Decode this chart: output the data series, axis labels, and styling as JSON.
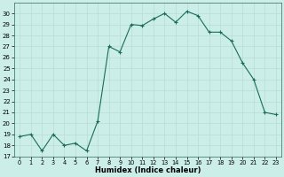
{
  "x": [
    0,
    1,
    2,
    3,
    4,
    5,
    6,
    7,
    8,
    9,
    10,
    11,
    12,
    13,
    14,
    15,
    16,
    17,
    18,
    19,
    20,
    21,
    22,
    23
  ],
  "y": [
    18.8,
    19.0,
    17.5,
    19.0,
    18.0,
    18.2,
    17.5,
    20.2,
    27.0,
    26.5,
    29.0,
    28.9,
    29.5,
    30.0,
    29.2,
    30.2,
    29.8,
    28.3,
    28.3,
    27.5,
    25.5,
    24.0,
    21.0,
    20.8
  ],
  "xlabel": "Humidex (Indice chaleur)",
  "ylim": [
    17,
    31
  ],
  "xlim": [
    -0.5,
    23.5
  ],
  "yticks": [
    17,
    18,
    19,
    20,
    21,
    22,
    23,
    24,
    25,
    26,
    27,
    28,
    29,
    30
  ],
  "xticks": [
    0,
    1,
    2,
    3,
    4,
    5,
    6,
    7,
    8,
    9,
    10,
    11,
    12,
    13,
    14,
    15,
    16,
    17,
    18,
    19,
    20,
    21,
    22,
    23
  ],
  "line_color": "#1a6b5a",
  "marker_color": "#1a6b5a",
  "bg_color": "#cceee8",
  "grid_color": "#b8ddd6"
}
